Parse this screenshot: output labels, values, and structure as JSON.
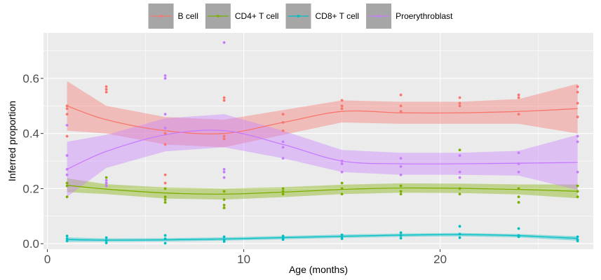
{
  "chart_data": {
    "type": "scatter",
    "xlabel": "Age (months)",
    "ylabel": "Inferred proportion",
    "xlim": [
      -0.2,
      27.8
    ],
    "ylim": [
      -0.02,
      0.765
    ],
    "x_ticks": [
      0,
      10,
      20
    ],
    "y_ticks": [
      0.0,
      0.2,
      0.4,
      0.6
    ],
    "x_tick_labels": [
      "0",
      "10",
      "20"
    ],
    "y_tick_labels": [
      "0.0",
      "0.2",
      "0.4",
      "0.6"
    ],
    "legend_position": "top",
    "grid": true,
    "series": [
      {
        "name": "B cell",
        "color": "#F8766D",
        "points": [
          [
            1,
            0.49
          ],
          [
            1,
            0.5
          ],
          [
            1,
            0.47
          ],
          [
            1,
            0.39
          ],
          [
            3,
            0.57
          ],
          [
            3,
            0.56
          ],
          [
            3,
            0.55
          ],
          [
            6,
            0.4
          ],
          [
            6,
            0.36
          ],
          [
            6,
            0.25
          ],
          [
            6,
            0.22
          ],
          [
            9,
            0.53
          ],
          [
            9,
            0.52
          ],
          [
            9,
            0.39
          ],
          [
            9,
            0.38
          ],
          [
            12,
            0.47
          ],
          [
            12,
            0.44
          ],
          [
            12,
            0.41
          ],
          [
            15,
            0.52
          ],
          [
            15,
            0.5
          ],
          [
            15,
            0.49
          ],
          [
            18,
            0.54
          ],
          [
            18,
            0.5
          ],
          [
            18,
            0.48
          ],
          [
            21,
            0.53
          ],
          [
            21,
            0.51
          ],
          [
            21,
            0.5
          ],
          [
            24,
            0.54
          ],
          [
            24,
            0.53
          ],
          [
            24,
            0.47
          ],
          [
            27,
            0.57
          ],
          [
            27,
            0.55
          ],
          [
            27,
            0.51
          ],
          [
            27,
            0.46
          ]
        ],
        "trend_x": [
          1,
          3,
          6,
          9,
          12,
          15,
          18,
          21,
          24,
          27
        ],
        "trend_y": [
          0.5,
          0.45,
          0.41,
          0.4,
          0.44,
          0.48,
          0.475,
          0.475,
          0.48,
          0.49
        ],
        "trend_se": [
          0.09,
          0.05,
          0.05,
          0.05,
          0.045,
          0.04,
          0.04,
          0.04,
          0.045,
          0.09
        ]
      },
      {
        "name": "CD4+ T cell",
        "color": "#7CAE00",
        "points": [
          [
            1,
            0.22
          ],
          [
            1,
            0.21
          ],
          [
            1,
            0.17
          ],
          [
            3,
            0.24
          ],
          [
            3,
            0.22
          ],
          [
            3,
            0.21
          ],
          [
            6,
            0.2
          ],
          [
            6,
            0.17
          ],
          [
            6,
            0.16
          ],
          [
            6,
            0.15
          ],
          [
            9,
            0.19
          ],
          [
            9,
            0.16
          ],
          [
            9,
            0.14
          ],
          [
            9,
            0.13
          ],
          [
            12,
            0.2
          ],
          [
            12,
            0.19
          ],
          [
            12,
            0.18
          ],
          [
            15,
            0.22
          ],
          [
            15,
            0.2
          ],
          [
            15,
            0.18
          ],
          [
            18,
            0.21
          ],
          [
            18,
            0.19
          ],
          [
            18,
            0.18
          ],
          [
            21,
            0.34
          ],
          [
            21,
            0.2
          ],
          [
            21,
            0.18
          ],
          [
            24,
            0.2
          ],
          [
            24,
            0.17
          ],
          [
            24,
            0.15
          ],
          [
            27,
            0.21
          ],
          [
            27,
            0.19
          ],
          [
            27,
            0.17
          ]
        ],
        "trend_x": [
          1,
          3,
          6,
          9,
          12,
          15,
          18,
          21,
          24,
          27
        ],
        "trend_y": [
          0.212,
          0.198,
          0.184,
          0.18,
          0.187,
          0.197,
          0.202,
          0.201,
          0.197,
          0.19
        ],
        "trend_se": [
          0.025,
          0.018,
          0.02,
          0.02,
          0.018,
          0.017,
          0.017,
          0.017,
          0.018,
          0.025
        ]
      },
      {
        "name": "CD8+ T cell",
        "color": "#00BFC4",
        "points": [
          [
            1,
            0.028
          ],
          [
            1,
            0.018
          ],
          [
            1,
            0.01
          ],
          [
            3,
            0.022
          ],
          [
            3,
            0.012
          ],
          [
            3,
            0.003
          ],
          [
            6,
            0.03
          ],
          [
            6,
            0.018
          ],
          [
            6,
            0.002
          ],
          [
            9,
            0.025
          ],
          [
            9,
            0.015
          ],
          [
            9,
            0.008
          ],
          [
            12,
            0.028
          ],
          [
            12,
            0.022
          ],
          [
            12,
            0.015
          ],
          [
            15,
            0.032
          ],
          [
            15,
            0.025
          ],
          [
            15,
            0.018
          ],
          [
            18,
            0.04
          ],
          [
            18,
            0.03
          ],
          [
            18,
            0.02
          ],
          [
            21,
            0.063
          ],
          [
            21,
            0.035
          ],
          [
            21,
            0.022
          ],
          [
            24,
            0.055
          ],
          [
            24,
            0.03
          ],
          [
            24,
            0.025
          ],
          [
            27,
            0.025
          ],
          [
            27,
            0.015
          ],
          [
            27,
            0.01
          ]
        ],
        "trend_x": [
          1,
          3,
          6,
          9,
          12,
          15,
          18,
          21,
          24,
          27
        ],
        "trend_y": [
          0.015,
          0.013,
          0.014,
          0.017,
          0.022,
          0.027,
          0.031,
          0.033,
          0.029,
          0.019
        ],
        "trend_se": [
          0.008,
          0.006,
          0.006,
          0.006,
          0.006,
          0.006,
          0.006,
          0.006,
          0.006,
          0.008
        ]
      },
      {
        "name": "Proerythroblast",
        "color": "#C77CFF",
        "points": [
          [
            1,
            0.43
          ],
          [
            1,
            0.32
          ],
          [
            1,
            0.27
          ],
          [
            1,
            0.25
          ],
          [
            3,
            0.23
          ],
          [
            3,
            0.22
          ],
          [
            3,
            0.21
          ],
          [
            6,
            0.61
          ],
          [
            6,
            0.6
          ],
          [
            6,
            0.47
          ],
          [
            6,
            0.42
          ],
          [
            9,
            0.73
          ],
          [
            9,
            0.27
          ],
          [
            9,
            0.26
          ],
          [
            9,
            0.24
          ],
          [
            12,
            0.37
          ],
          [
            12,
            0.35
          ],
          [
            12,
            0.31
          ],
          [
            15,
            0.3
          ],
          [
            15,
            0.29
          ],
          [
            15,
            0.26
          ],
          [
            18,
            0.31
          ],
          [
            18,
            0.28
          ],
          [
            18,
            0.25
          ],
          [
            21,
            0.32
          ],
          [
            21,
            0.26
          ],
          [
            21,
            0.24
          ],
          [
            24,
            0.33
          ],
          [
            24,
            0.29
          ],
          [
            24,
            0.26
          ],
          [
            27,
            0.39
          ],
          [
            27,
            0.37
          ],
          [
            27,
            0.26
          ]
        ],
        "trend_x": [
          1,
          3,
          6,
          9,
          12,
          15,
          18,
          21,
          24,
          27
        ],
        "trend_y": [
          0.27,
          0.335,
          0.395,
          0.41,
          0.36,
          0.3,
          0.29,
          0.29,
          0.292,
          0.295
        ],
        "trend_se": [
          0.1,
          0.06,
          0.06,
          0.06,
          0.05,
          0.04,
          0.04,
          0.04,
          0.045,
          0.1
        ]
      }
    ]
  }
}
